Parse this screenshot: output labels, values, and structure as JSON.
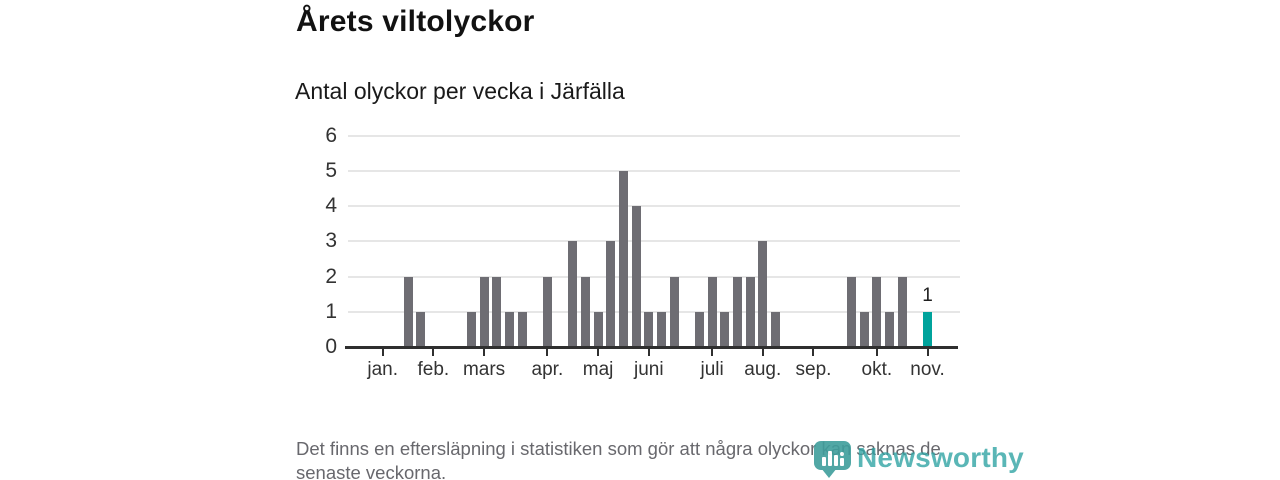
{
  "page": {
    "title": "Årets viltolyckor",
    "subtitle": "Antal olyckor per vecka i Järfälla"
  },
  "footer": {
    "note": "Det finns en eftersläpning i statistiken som gör att några olyckor kan saknas de senaste veckorna."
  },
  "branding": {
    "name": "Newsworthy",
    "icon": "newsworthy-pin-barchart-icon",
    "color": "#2fa3a3"
  },
  "chart_data": {
    "type": "bar",
    "title": "Årets viltolyckor",
    "subtitle": "Antal olyckor per vecka i Järfälla",
    "x_unit": "vecka",
    "ylim": [
      0,
      6
    ],
    "yticks": [
      0,
      1,
      2,
      3,
      4,
      5,
      6
    ],
    "grid": "horizontal",
    "legend": "none",
    "bar_color": "#6e6d73",
    "highlight_color": "#00a39c",
    "axis_color": "#2f2f2f",
    "values": [
      0,
      0,
      0,
      0,
      0,
      2,
      1,
      0,
      0,
      0,
      1,
      2,
      2,
      1,
      1,
      0,
      2,
      0,
      3,
      2,
      1,
      3,
      5,
      4,
      1,
      1,
      2,
      0,
      1,
      2,
      1,
      2,
      2,
      3,
      1,
      0,
      0,
      0,
      0,
      0,
      2,
      1,
      2,
      1,
      2,
      0,
      1,
      0,
      0
    ],
    "highlight_index": 46,
    "highlight_label": "1",
    "month_ticks": [
      {
        "label": "jan.",
        "slot": 3
      },
      {
        "label": "feb.",
        "slot": 7
      },
      {
        "label": "mars",
        "slot": 11
      },
      {
        "label": "apr.",
        "slot": 16
      },
      {
        "label": "maj",
        "slot": 20
      },
      {
        "label": "juni",
        "slot": 24
      },
      {
        "label": "juli",
        "slot": 29
      },
      {
        "label": "aug.",
        "slot": 33
      },
      {
        "label": "sep.",
        "slot": 37
      },
      {
        "label": "okt.",
        "slot": 42
      },
      {
        "label": "nov.",
        "slot": 46
      }
    ]
  }
}
